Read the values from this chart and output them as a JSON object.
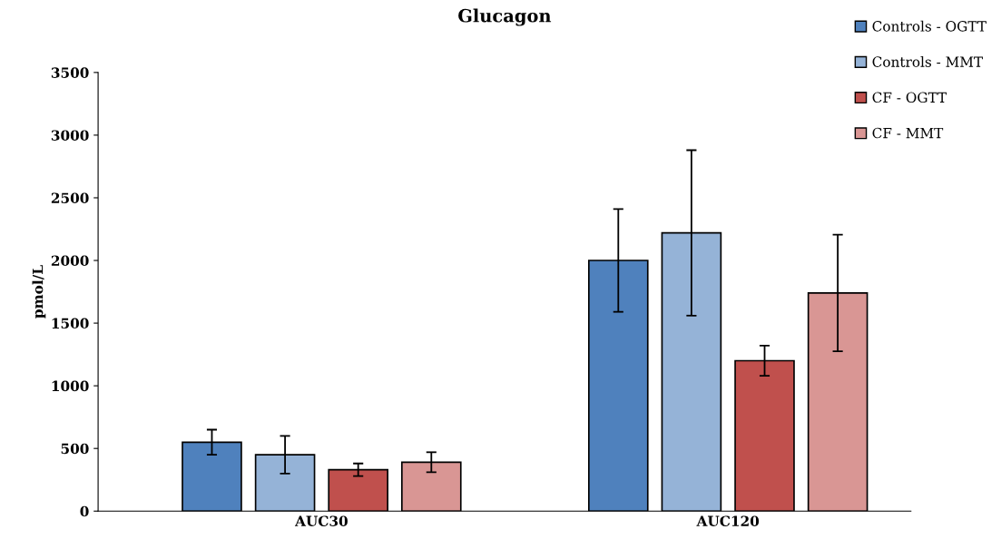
{
  "chart_data": {
    "type": "bar",
    "title": "Glucagon",
    "ylabel": "pmol/L",
    "categories": [
      "AUC30",
      "AUC120"
    ],
    "series": [
      {
        "name": "Controls - OGTT",
        "color": "#4f81bd",
        "values": [
          550,
          2000
        ],
        "errors": [
          100,
          410
        ]
      },
      {
        "name": "Controls - MMT",
        "color": "#95b3d7",
        "values": [
          450,
          2220
        ],
        "errors": [
          150,
          660
        ]
      },
      {
        "name": "CF - OGTT",
        "color": "#c0504d",
        "values": [
          330,
          1200
        ],
        "errors": [
          50,
          120
        ]
      },
      {
        "name": "CF - MMT",
        "color": "#d99694",
        "values": [
          390,
          1740
        ],
        "errors": [
          80,
          465
        ]
      }
    ],
    "ylim": [
      0,
      3500
    ],
    "yticks": [
      0,
      500,
      1000,
      1500,
      2000,
      2500,
      3000,
      3500
    ],
    "grid": false,
    "legend": "top right"
  }
}
